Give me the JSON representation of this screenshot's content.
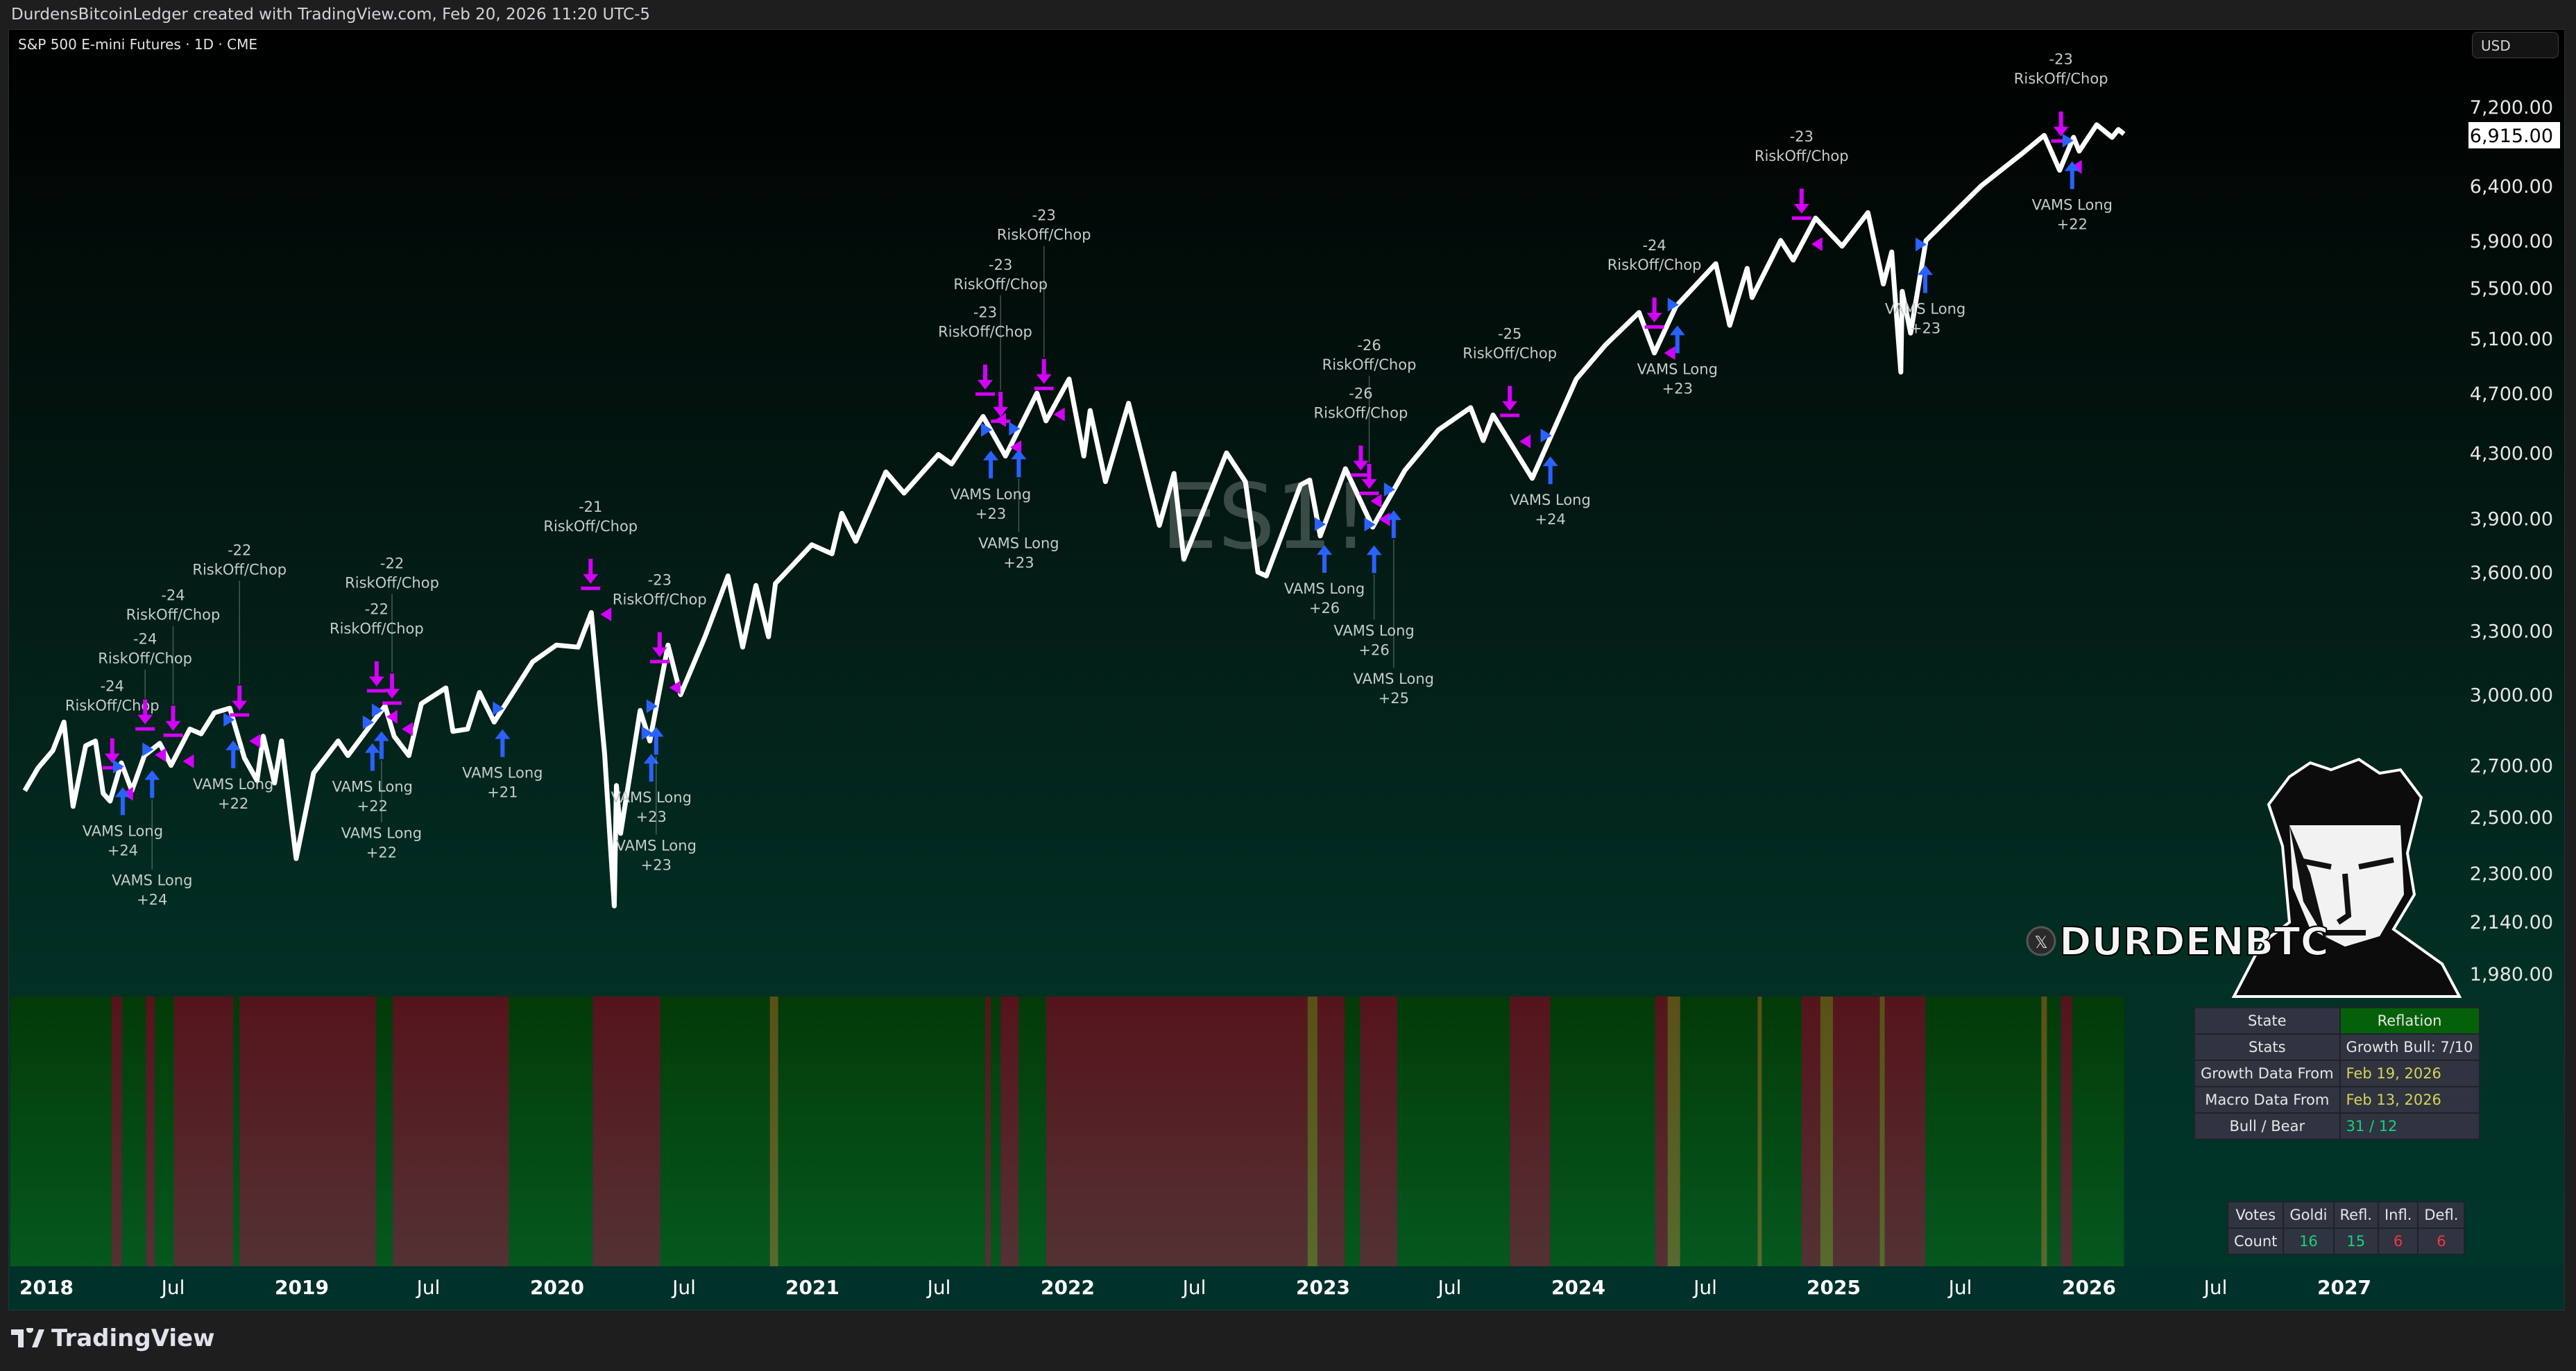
{
  "header": {
    "attribution": "DurdensBitcoinLedger created with TradingView.com, Feb 20, 2026 11:20 UTC-5",
    "symbol_title": "S&P 500 E-mini Futures · 1D · CME",
    "watermark": "ES1!",
    "currency_button": "USD"
  },
  "footer": {
    "brand": "TradingView"
  },
  "logo": {
    "handle": "DURDENBTC",
    "network_icon": "x-icon"
  },
  "colors": {
    "price_line": "#ffffff",
    "riskoff": "#d500f9",
    "long": "#2962ff",
    "bull": "#05581e",
    "bear": "#541419",
    "neutral": "#5a5a1e",
    "label": "#c4cccc"
  },
  "chart_data": {
    "type": "line",
    "y_scale": "log",
    "ylim": [
      1980,
      7200
    ],
    "last_price": "6,915.00",
    "y_ticks": [
      "7,200.00",
      "6,400.00",
      "5,900.00",
      "5,500.00",
      "5,100.00",
      "4,700.00",
      "4,300.00",
      "3,900.00",
      "3,600.00",
      "3,300.00",
      "3,000.00",
      "2,700.00",
      "2,500.00",
      "2,300.00",
      "2,140.00",
      "1,980.00"
    ],
    "x_ticks": [
      {
        "d": "2018-01-01",
        "l": "2018",
        "major": true
      },
      {
        "d": "2018-07-01",
        "l": "Jul"
      },
      {
        "d": "2019-01-01",
        "l": "2019",
        "major": true
      },
      {
        "d": "2019-07-01",
        "l": "Jul"
      },
      {
        "d": "2020-01-01",
        "l": "2020",
        "major": true
      },
      {
        "d": "2020-07-01",
        "l": "Jul"
      },
      {
        "d": "2021-01-01",
        "l": "2021",
        "major": true
      },
      {
        "d": "2021-07-01",
        "l": "Jul"
      },
      {
        "d": "2022-01-01",
        "l": "2022",
        "major": true
      },
      {
        "d": "2022-07-01",
        "l": "Jul"
      },
      {
        "d": "2023-01-01",
        "l": "2023",
        "major": true
      },
      {
        "d": "2023-07-01",
        "l": "Jul"
      },
      {
        "d": "2024-01-01",
        "l": "2024",
        "major": true
      },
      {
        "d": "2024-07-01",
        "l": "Jul"
      },
      {
        "d": "2025-01-01",
        "l": "2025",
        "major": true
      },
      {
        "d": "2025-07-01",
        "l": "Jul"
      },
      {
        "d": "2026-01-01",
        "l": "2026",
        "major": true
      },
      {
        "d": "2026-07-01",
        "l": "Jul"
      },
      {
        "d": "2027-01-01",
        "l": "2027",
        "major": true
      }
    ],
    "series": [
      [
        "2017-12-01",
        2600
      ],
      [
        "2017-12-20",
        2690
      ],
      [
        "2018-01-10",
        2760
      ],
      [
        "2018-01-26",
        2880
      ],
      [
        "2018-02-08",
        2540
      ],
      [
        "2018-02-26",
        2780
      ],
      [
        "2018-03-12",
        2800
      ],
      [
        "2018-03-23",
        2590
      ],
      [
        "2018-04-02",
        2560
      ],
      [
        "2018-04-18",
        2710
      ],
      [
        "2018-05-03",
        2600
      ],
      [
        "2018-05-21",
        2740
      ],
      [
        "2018-06-12",
        2790
      ],
      [
        "2018-06-28",
        2700
      ],
      [
        "2018-07-25",
        2850
      ],
      [
        "2018-08-10",
        2830
      ],
      [
        "2018-08-29",
        2920
      ],
      [
        "2018-09-20",
        2940
      ],
      [
        "2018-10-11",
        2730
      ],
      [
        "2018-10-29",
        2640
      ],
      [
        "2018-11-07",
        2820
      ],
      [
        "2018-11-23",
        2630
      ],
      [
        "2018-12-03",
        2800
      ],
      [
        "2018-12-24",
        2350
      ],
      [
        "2019-01-18",
        2670
      ],
      [
        "2019-02-22",
        2800
      ],
      [
        "2019-03-08",
        2740
      ],
      [
        "2019-04-30",
        2950
      ],
      [
        "2019-05-13",
        2820
      ],
      [
        "2019-06-03",
        2740
      ],
      [
        "2019-06-21",
        2960
      ],
      [
        "2019-07-26",
        3030
      ],
      [
        "2019-08-05",
        2840
      ],
      [
        "2019-08-26",
        2850
      ],
      [
        "2019-09-12",
        3010
      ],
      [
        "2019-10-03",
        2880
      ],
      [
        "2019-11-27",
        3150
      ],
      [
        "2019-12-31",
        3230
      ],
      [
        "2020-01-31",
        3220
      ],
      [
        "2020-02-19",
        3390
      ],
      [
        "2020-03-09",
        2750
      ],
      [
        "2020-03-23",
        2190
      ],
      [
        "2020-03-26",
        2620
      ],
      [
        "2020-04-01",
        2440
      ],
      [
        "2020-04-29",
        2930
      ],
      [
        "2020-05-13",
        2800
      ],
      [
        "2020-06-08",
        3230
      ],
      [
        "2020-06-26",
        3000
      ],
      [
        "2020-07-31",
        3270
      ],
      [
        "2020-09-02",
        3580
      ],
      [
        "2020-09-23",
        3220
      ],
      [
        "2020-10-12",
        3530
      ],
      [
        "2020-10-30",
        3270
      ],
      [
        "2020-11-09",
        3540
      ],
      [
        "2020-12-31",
        3750
      ],
      [
        "2021-01-29",
        3700
      ],
      [
        "2021-02-12",
        3930
      ],
      [
        "2021-03-04",
        3770
      ],
      [
        "2021-04-16",
        4180
      ],
      [
        "2021-05-12",
        4050
      ],
      [
        "2021-06-30",
        4290
      ],
      [
        "2021-07-19",
        4230
      ],
      [
        "2021-09-02",
        4540
      ],
      [
        "2021-10-04",
        4280
      ],
      [
        "2021-11-18",
        4700
      ],
      [
        "2021-12-01",
        4510
      ],
      [
        "2022-01-03",
        4800
      ],
      [
        "2022-01-24",
        4280
      ],
      [
        "2022-02-02",
        4580
      ],
      [
        "2022-02-24",
        4120
      ],
      [
        "2022-03-29",
        4630
      ],
      [
        "2022-05-12",
        3860
      ],
      [
        "2022-06-02",
        4170
      ],
      [
        "2022-06-16",
        3670
      ],
      [
        "2022-08-16",
        4300
      ],
      [
        "2022-09-12",
        4120
      ],
      [
        "2022-09-30",
        3600
      ],
      [
        "2022-10-12",
        3580
      ],
      [
        "2022-11-30",
        4100
      ],
      [
        "2022-12-13",
        4130
      ],
      [
        "2022-12-28",
        3800
      ],
      [
        "2023-02-02",
        4200
      ],
      [
        "2023-03-13",
        3850
      ],
      [
        "2023-04-28",
        4190
      ],
      [
        "2023-06-15",
        4450
      ],
      [
        "2023-07-31",
        4600
      ],
      [
        "2023-08-18",
        4380
      ],
      [
        "2023-09-01",
        4550
      ],
      [
        "2023-10-27",
        4140
      ],
      [
        "2023-12-29",
        4800
      ],
      [
        "2024-02-09",
        5050
      ],
      [
        "2024-03-28",
        5300
      ],
      [
        "2024-04-19",
        4990
      ],
      [
        "2024-05-20",
        5350
      ],
      [
        "2024-07-16",
        5700
      ],
      [
        "2024-08-05",
        5200
      ],
      [
        "2024-08-30",
        5660
      ],
      [
        "2024-09-06",
        5420
      ],
      [
        "2024-10-17",
        5900
      ],
      [
        "2024-11-04",
        5730
      ],
      [
        "2024-12-06",
        6100
      ],
      [
        "2025-01-13",
        5850
      ],
      [
        "2025-02-19",
        6150
      ],
      [
        "2025-03-13",
        5530
      ],
      [
        "2025-03-25",
        5800
      ],
      [
        "2025-04-07",
        4850
      ],
      [
        "2025-04-09",
        5470
      ],
      [
        "2025-04-21",
        5140
      ],
      [
        "2025-05-13",
        5900
      ],
      [
        "2025-06-30",
        6200
      ],
      [
        "2025-07-31",
        6400
      ],
      [
        "2025-09-30",
        6730
      ],
      [
        "2025-10-29",
        6900
      ],
      [
        "2025-11-20",
        6550
      ],
      [
        "2025-12-10",
        6880
      ],
      [
        "2025-12-18",
        6740
      ],
      [
        "2026-01-12",
        7010
      ],
      [
        "2026-02-03",
        6880
      ],
      [
        "2026-02-12",
        6960
      ],
      [
        "2026-02-20",
        6915
      ]
    ],
    "signals": [
      {
        "d": "2018-04-05",
        "type": "riskoff",
        "score": "-24",
        "label": "RiskOff/Chop"
      },
      {
        "d": "2018-04-20",
        "type": "long",
        "score": "+24",
        "label": "VAMS Long"
      },
      {
        "d": "2018-05-22",
        "type": "riskoff",
        "score": "-24",
        "label": "RiskOff/Chop"
      },
      {
        "d": "2018-06-01",
        "type": "long",
        "score": "+24",
        "label": "VAMS Long"
      },
      {
        "d": "2018-07-01",
        "type": "riskoff",
        "score": "-24",
        "label": "RiskOff/Chop"
      },
      {
        "d": "2018-09-25",
        "type": "long",
        "score": "+22",
        "label": "VAMS Long"
      },
      {
        "d": "2018-10-04",
        "type": "riskoff",
        "score": "-22",
        "label": "RiskOff/Chop"
      },
      {
        "d": "2019-04-12",
        "type": "long",
        "score": "+22",
        "label": "VAMS Long"
      },
      {
        "d": "2019-04-18",
        "type": "riskoff",
        "score": "-22",
        "label": "RiskOff/Chop"
      },
      {
        "d": "2019-04-25",
        "type": "long",
        "score": "+22",
        "label": "VAMS Long"
      },
      {
        "d": "2019-05-10",
        "type": "riskoff",
        "score": "-22",
        "label": "RiskOff/Chop"
      },
      {
        "d": "2019-10-15",
        "type": "long",
        "score": "+21",
        "label": "VAMS Long"
      },
      {
        "d": "2020-02-18",
        "type": "riskoff",
        "score": "-21",
        "label": "RiskOff/Chop"
      },
      {
        "d": "2020-05-15",
        "type": "long",
        "score": "+23",
        "label": "VAMS Long"
      },
      {
        "d": "2020-05-22",
        "type": "long",
        "score": "+23",
        "label": "VAMS Long"
      },
      {
        "d": "2020-05-27",
        "type": "riskoff",
        "score": "-23",
        "label": "RiskOff/Chop"
      },
      {
        "d": "2021-09-05",
        "type": "riskoff",
        "score": "-23",
        "label": "RiskOff/Chop"
      },
      {
        "d": "2021-09-13",
        "type": "long",
        "score": "+23",
        "label": "VAMS Long"
      },
      {
        "d": "2021-09-27",
        "type": "riskoff",
        "score": "-23",
        "label": "RiskOff/Chop"
      },
      {
        "d": "2021-10-23",
        "type": "long",
        "score": "+23",
        "label": "VAMS Long"
      },
      {
        "d": "2021-11-28",
        "type": "riskoff",
        "score": "-23",
        "label": "RiskOff/Chop"
      },
      {
        "d": "2023-01-03",
        "type": "long",
        "score": "+26",
        "label": "VAMS Long"
      },
      {
        "d": "2023-02-24",
        "type": "riskoff",
        "score": "-26",
        "label": "RiskOff/Chop"
      },
      {
        "d": "2023-03-08",
        "type": "riskoff",
        "score": "-26",
        "label": "RiskOff/Chop"
      },
      {
        "d": "2023-03-15",
        "type": "long",
        "score": "+26",
        "label": "VAMS Long"
      },
      {
        "d": "2023-04-12",
        "type": "long",
        "score": "+25",
        "label": "VAMS Long"
      },
      {
        "d": "2023-09-25",
        "type": "riskoff",
        "score": "-25",
        "label": "RiskOff/Chop"
      },
      {
        "d": "2023-11-22",
        "type": "long",
        "score": "+24",
        "label": "VAMS Long"
      },
      {
        "d": "2024-04-19",
        "type": "riskoff",
        "score": "-24",
        "label": "RiskOff/Chop"
      },
      {
        "d": "2024-05-22",
        "type": "long",
        "score": "+23",
        "label": "VAMS Long"
      },
      {
        "d": "2024-11-16",
        "type": "riskoff",
        "score": "-23",
        "label": "RiskOff/Chop"
      },
      {
        "d": "2025-05-12",
        "type": "long",
        "score": "+23",
        "label": "VAMS Long"
      },
      {
        "d": "2025-11-22",
        "type": "riskoff",
        "score": "-23",
        "label": "RiskOff/Chop"
      },
      {
        "d": "2025-12-08",
        "type": "long",
        "score": "+22",
        "label": "VAMS Long"
      }
    ],
    "regime_bands": [
      [
        "2017-11-10",
        "2018-04-04",
        "bull"
      ],
      [
        "2018-04-04",
        "2018-04-19",
        "bear"
      ],
      [
        "2018-04-19",
        "2018-05-23",
        "bull"
      ],
      [
        "2018-05-23",
        "2018-06-05",
        "bear"
      ],
      [
        "2018-06-05",
        "2018-07-02",
        "bull"
      ],
      [
        "2018-07-02",
        "2018-09-25",
        "bear"
      ],
      [
        "2018-09-25",
        "2018-10-04",
        "bull"
      ],
      [
        "2018-10-04",
        "2019-04-17",
        "bear"
      ],
      [
        "2019-04-17",
        "2019-05-11",
        "bull"
      ],
      [
        "2019-05-11",
        "2019-10-24",
        "bear"
      ],
      [
        "2019-10-24",
        "2020-02-21",
        "bull"
      ],
      [
        "2020-02-21",
        "2020-05-28",
        "bear"
      ],
      [
        "2020-05-28",
        "2020-11-01",
        "bull"
      ],
      [
        "2020-11-01",
        "2020-11-13",
        "neutral"
      ],
      [
        "2020-11-13",
        "2021-09-05",
        "bull"
      ],
      [
        "2021-09-05",
        "2021-09-13",
        "bear"
      ],
      [
        "2021-09-13",
        "2021-09-27",
        "bull"
      ],
      [
        "2021-09-27",
        "2021-10-23",
        "bear"
      ],
      [
        "2021-10-23",
        "2021-12-01",
        "bull"
      ],
      [
        "2021-12-01",
        "2022-12-10",
        "bear"
      ],
      [
        "2022-12-10",
        "2022-12-24",
        "neutral"
      ],
      [
        "2022-12-24",
        "2023-02-01",
        "bear"
      ],
      [
        "2023-02-01",
        "2023-02-23",
        "bull"
      ],
      [
        "2023-02-23",
        "2023-04-17",
        "bear"
      ],
      [
        "2023-04-17",
        "2023-09-25",
        "bull"
      ],
      [
        "2023-09-25",
        "2023-11-22",
        "bear"
      ],
      [
        "2023-11-22",
        "2024-04-20",
        "bull"
      ],
      [
        "2024-04-20",
        "2024-05-08",
        "bear"
      ],
      [
        "2024-05-08",
        "2024-05-26",
        "neutral"
      ],
      [
        "2024-05-26",
        "2024-09-14",
        "bull"
      ],
      [
        "2024-09-14",
        "2024-09-20",
        "neutral"
      ],
      [
        "2024-09-20",
        "2024-11-16",
        "bull"
      ],
      [
        "2024-11-16",
        "2024-12-13",
        "bear"
      ],
      [
        "2024-12-13",
        "2024-12-31",
        "neutral"
      ],
      [
        "2024-12-31",
        "2025-03-08",
        "bear"
      ],
      [
        "2025-03-08",
        "2025-03-15",
        "neutral"
      ],
      [
        "2025-03-15",
        "2025-05-12",
        "bear"
      ],
      [
        "2025-05-12",
        "2025-10-25",
        "bull"
      ],
      [
        "2025-10-25",
        "2025-11-02",
        "neutral"
      ],
      [
        "2025-11-02",
        "2025-11-22",
        "bull"
      ],
      [
        "2025-11-22",
        "2025-12-08",
        "bear"
      ],
      [
        "2025-12-08",
        "2026-02-20",
        "bull"
      ]
    ]
  },
  "state_table": {
    "rows": [
      {
        "label": "State",
        "value": "Reflation"
      },
      {
        "label": "Stats",
        "value": "Growth Bull: 7/10"
      },
      {
        "label": "Growth Data From",
        "value": "Feb 19, 2026"
      },
      {
        "label": "Macro Data From",
        "value": "Feb 13, 2026"
      },
      {
        "label": "Bull / Bear",
        "value": "31 / 12"
      }
    ]
  },
  "votes_table": {
    "headers": [
      "Votes",
      "Goldi",
      "Refl.",
      "Infl.",
      "Defl."
    ],
    "row_label": "Count",
    "counts": [
      "16",
      "15",
      "6",
      "6"
    ]
  }
}
